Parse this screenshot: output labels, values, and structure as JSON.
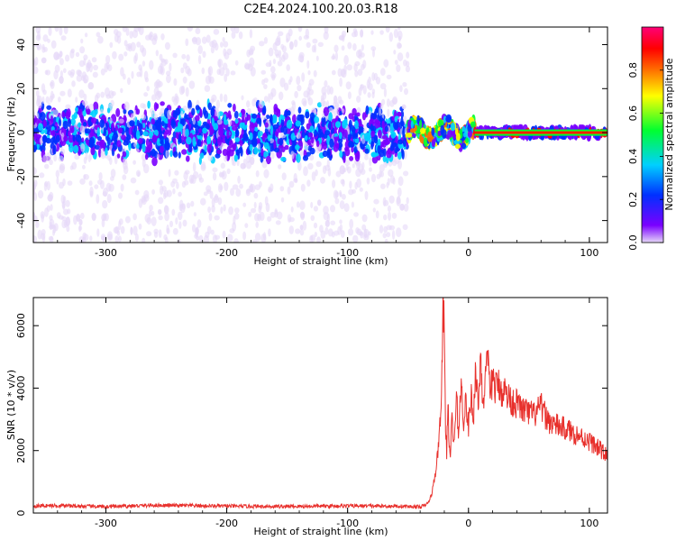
{
  "title": "C2E4.2024.100.20.03.R18",
  "chart_data": [
    {
      "type": "heatmap",
      "xlabel": "Height of straight line (km)",
      "ylabel": "Frequency (Hz)",
      "xlim": [
        -360,
        115
      ],
      "ylim": [
        -50,
        48
      ],
      "xticks": [
        -300,
        -200,
        -100,
        0,
        100
      ],
      "yticks": [
        -40,
        -20,
        0,
        20,
        40
      ],
      "colorbar": {
        "label": "Normalized spectral amplitude",
        "range": [
          0,
          1
        ],
        "ticks": [
          "0.0",
          "0.2",
          "0.4",
          "0.6",
          "0.8"
        ],
        "colormap": "rainbow",
        "colors": [
          "#e6d8f8",
          "#7a00ff",
          "#0030ff",
          "#00d0ff",
          "#00ff30",
          "#ffff00",
          "#ff7000",
          "#ff0000",
          "#ff0078"
        ]
      },
      "regions": [
        {
          "from": -360,
          "to": -50,
          "description": "broad noise; dense band near 0 Hz spanning about -10 to 10 Hz, sparse points to edges",
          "band_halfwidth_hz": 10,
          "peak_amplitude": 0.3
        },
        {
          "from": -50,
          "to": 5,
          "description": "oscillating strong band around 0 Hz",
          "band_halfwidth_hz": 4,
          "peak_amplitude": 0.7
        },
        {
          "from": 5,
          "to": 115,
          "description": "steady strong line at 0 Hz",
          "band_halfwidth_hz": 2,
          "peak_amplitude": 0.85
        }
      ]
    },
    {
      "type": "line",
      "xlabel": "Height of straight line (km)",
      "ylabel": "SNR (10 * v/v)",
      "xlim": [
        -360,
        115
      ],
      "ylim": [
        0,
        6900
      ],
      "xticks": [
        -300,
        -200,
        -100,
        0,
        100
      ],
      "yticks": [
        0,
        2000,
        4000,
        6000
      ],
      "color": "#e8302c",
      "series": [
        {
          "x": [
            -360,
            -340,
            -300,
            -260,
            -200,
            -150,
            -100,
            -60,
            -40,
            -35,
            -32,
            -30,
            -28,
            -26,
            -24,
            -22,
            -21,
            -20,
            -19,
            -18,
            -17,
            -16,
            -15,
            -14,
            -12,
            -10,
            -8,
            -6,
            -4,
            -2,
            0,
            2,
            4,
            6,
            8,
            10,
            12,
            14,
            16,
            18,
            20,
            22,
            25,
            28,
            30,
            35,
            40,
            45,
            50,
            55,
            60,
            65,
            70,
            80,
            90,
            100,
            110,
            115
          ],
          "y": [
            230,
            240,
            200,
            250,
            220,
            210,
            230,
            220,
            200,
            260,
            420,
            700,
            1100,
            1700,
            2600,
            4300,
            6900,
            5600,
            2800,
            2000,
            3400,
            2400,
            1600,
            3000,
            2200,
            3600,
            2600,
            4200,
            3000,
            3600,
            2700,
            3800,
            3000,
            4700,
            3300,
            5100,
            3500,
            4300,
            4800,
            3700,
            4400,
            4000,
            4100,
            3900,
            3900,
            3600,
            3500,
            3300,
            3200,
            3150,
            3400,
            3000,
            2850,
            2700,
            2500,
            2300,
            2000,
            1800
          ]
        }
      ]
    }
  ]
}
